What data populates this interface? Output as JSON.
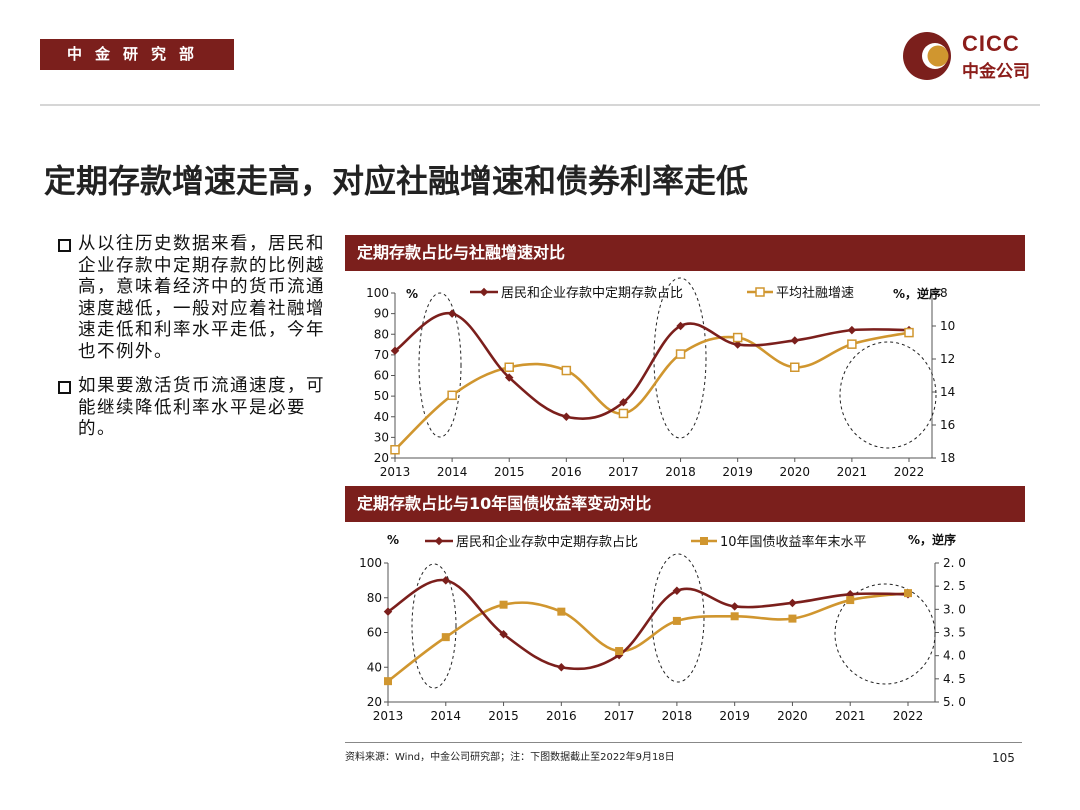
{
  "header": {
    "tag": "中金研究部",
    "logo_en": "CICC",
    "logo_cn": "中金公司"
  },
  "title": "定期存款增速走高，对应社融增速和债券利率走低",
  "bullets": [
    "从以往历史数据来看，居民和企业存款中定期存款的比例越高，意味着经济中的货币流通速度越低，一般对应着社融增速走低和利率水平走低，今年也不例外。",
    "如果要激活货币流通速度，可能继续降低利率水平是必要的。"
  ],
  "colors": {
    "maroon": "#7b1f1c",
    "gold": "#d0962f"
  },
  "chart_data": [
    {
      "type": "line",
      "title": "定期存款占比与社融增速对比",
      "categories": [
        "2013",
        "2014",
        "2015",
        "2016",
        "2017",
        "2018",
        "2019",
        "2020",
        "2021",
        "2022"
      ],
      "left_unit": "%",
      "right_unit": "%，逆序",
      "left_ticks": [
        "100",
        "90",
        "80",
        "70",
        "60",
        "50",
        "40",
        "30",
        "20"
      ],
      "right_ticks": [
        "8",
        "10",
        "12",
        "14",
        "16",
        "18"
      ],
      "ylim_left": [
        20,
        100
      ],
      "ylim_right": [
        8,
        18
      ],
      "right_inverted": true,
      "series": [
        {
          "name": "居民和企业存款中定期存款占比",
          "axis": "left",
          "values": [
            72,
            90,
            59,
            40,
            47,
            84,
            75,
            77,
            82,
            82
          ]
        },
        {
          "name": "平均社融增速",
          "axis": "right",
          "values": [
            17.5,
            14.2,
            12.5,
            12.7,
            15.3,
            11.7,
            10.7,
            12.5,
            11.1,
            10.4
          ]
        }
      ]
    },
    {
      "type": "line",
      "title": "定期存款占比与10年国债收益率变动对比",
      "categories": [
        "2013",
        "2014",
        "2015",
        "2016",
        "2017",
        "2018",
        "2019",
        "2020",
        "2021",
        "2022"
      ],
      "left_unit": "%",
      "right_unit": "%，逆序",
      "left_ticks": [
        "100",
        "80",
        "60",
        "40",
        "20"
      ],
      "right_ticks": [
        "2. 0",
        "2. 5",
        "3. 0",
        "3. 5",
        "4. 0",
        "4. 5",
        "5. 0"
      ],
      "ylim_left": [
        20,
        100
      ],
      "ylim_right": [
        2.0,
        5.0
      ],
      "right_inverted": true,
      "series": [
        {
          "name": "居民和企业存款中定期存款占比",
          "axis": "left",
          "values": [
            72,
            90,
            59,
            40,
            47,
            84,
            75,
            77,
            82,
            82
          ]
        },
        {
          "name": "10年国债收益率年末水平",
          "axis": "right",
          "values": [
            4.55,
            3.6,
            2.9,
            3.05,
            3.9,
            3.25,
            3.15,
            3.2,
            2.8,
            2.65
          ]
        }
      ]
    }
  ],
  "footer": {
    "source": "资料来源：Wind，中金公司研究部；注：下图数据截止至2022年9月18日",
    "page": "105"
  }
}
